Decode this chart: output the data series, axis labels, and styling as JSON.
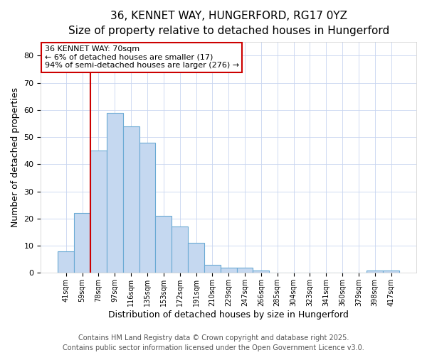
{
  "title_line1": "36, KENNET WAY, HUNGERFORD, RG17 0YZ",
  "title_line2": "Size of property relative to detached houses in Hungerford",
  "xlabel": "Distribution of detached houses by size in Hungerford",
  "ylabel": "Number of detached properties",
  "categories": [
    "41sqm",
    "59sqm",
    "78sqm",
    "97sqm",
    "116sqm",
    "135sqm",
    "153sqm",
    "172sqm",
    "191sqm",
    "210sqm",
    "229sqm",
    "247sqm",
    "266sqm",
    "285sqm",
    "304sqm",
    "323sqm",
    "341sqm",
    "360sqm",
    "379sqm",
    "398sqm",
    "417sqm"
  ],
  "values": [
    8,
    22,
    45,
    59,
    54,
    48,
    21,
    17,
    11,
    3,
    2,
    2,
    1,
    0,
    0,
    0,
    0,
    0,
    0,
    1,
    1
  ],
  "bar_color": "#c5d8f0",
  "bar_edgecolor": "#6aaad4",
  "ylim": [
    0,
    85
  ],
  "yticks": [
    0,
    10,
    20,
    30,
    40,
    50,
    60,
    70,
    80
  ],
  "vline_x": 1.5,
  "vline_color": "#cc0000",
  "annotation_text": "36 KENNET WAY: 70sqm\n← 6% of detached houses are smaller (17)\n94% of semi-detached houses are larger (276) →",
  "annotation_box_facecolor": "#ffffff",
  "annotation_box_edgecolor": "#cc0000",
  "footer_line1": "Contains HM Land Registry data © Crown copyright and database right 2025.",
  "footer_line2": "Contains public sector information licensed under the Open Government Licence v3.0.",
  "fig_bg_color": "#ffffff",
  "plot_bg_color": "#ffffff",
  "grid_color": "#c8d4f0",
  "title_fontsize": 11,
  "subtitle_fontsize": 10,
  "tick_fontsize": 7,
  "ylabel_fontsize": 9,
  "xlabel_fontsize": 9,
  "footer_fontsize": 7,
  "annotation_fontsize": 8
}
